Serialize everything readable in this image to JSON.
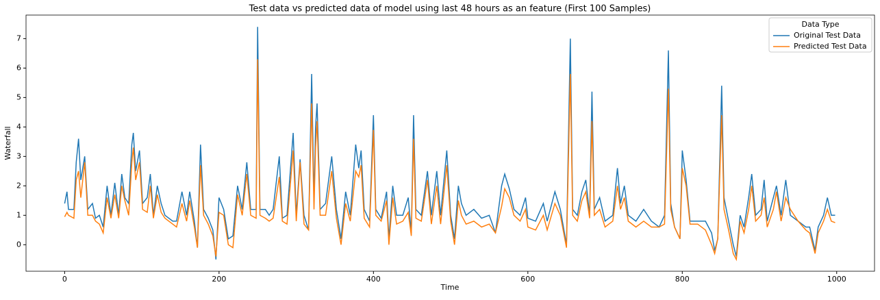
{
  "chart_data": {
    "type": "line",
    "title": "Test data vs predicted data of model using last 48 hours as an feature (First 100 Samples)",
    "x_label": "Time",
    "y_label": "Waterfall",
    "legend_title": "Data Type",
    "legend": "upper right",
    "x": [
      0,
      3,
      5,
      12,
      15,
      18,
      21,
      26,
      30,
      36,
      40,
      45,
      50,
      55,
      60,
      65,
      70,
      74,
      78,
      83,
      87,
      89,
      92,
      97,
      101,
      107,
      111,
      115,
      120,
      125,
      130,
      140,
      145,
      152,
      158,
      162,
      168,
      172,
      176,
      180,
      186,
      192,
      196,
      200,
      206,
      212,
      218,
      224,
      230,
      236,
      241,
      248,
      250,
      253,
      260,
      265,
      270,
      278,
      282,
      288,
      296,
      300,
      305,
      310,
      316,
      320,
      323,
      325,
      327,
      331,
      338,
      346,
      352,
      358,
      364,
      370,
      377,
      381,
      384,
      388,
      395,
      400,
      403,
      410,
      417,
      420,
      425,
      430,
      438,
      445,
      449,
      452,
      455,
      462,
      470,
      475,
      482,
      487,
      495,
      500,
      505,
      510,
      514,
      520,
      530,
      540,
      550,
      558,
      566,
      570,
      576,
      582,
      590,
      597,
      600,
      610,
      620,
      625,
      635,
      642,
      650,
      655,
      658,
      664,
      670,
      675,
      680,
      683,
      686,
      693,
      700,
      710,
      716,
      720,
      725,
      730,
      740,
      750,
      760,
      770,
      777,
      782,
      785,
      790,
      797,
      800,
      805,
      810,
      820,
      830,
      838,
      842,
      846,
      851,
      854,
      860,
      866,
      870,
      875,
      880,
      886,
      890,
      895,
      902,
      906,
      910,
      918,
      922,
      928,
      934,
      940,
      950,
      960,
      965,
      972,
      976,
      983,
      988,
      993,
      998
    ],
    "series": [
      {
        "name": "Original Test Data",
        "color": "#1f77b4",
        "values": [
          1.4,
          1.8,
          1.2,
          1.2,
          2.8,
          3.6,
          2.2,
          3.0,
          1.2,
          1.4,
          0.9,
          1.0,
          0.6,
          2.0,
          1.0,
          2.1,
          1.0,
          2.4,
          1.6,
          1.4,
          3.4,
          3.8,
          2.5,
          3.2,
          1.4,
          1.6,
          2.4,
          1.0,
          2.0,
          1.4,
          1.0,
          0.8,
          0.8,
          1.8,
          1.0,
          1.8,
          0.8,
          -0.1,
          3.4,
          1.2,
          0.9,
          0.5,
          -0.5,
          1.6,
          1.2,
          0.2,
          0.3,
          2.0,
          1.2,
          2.8,
          1.2,
          1.2,
          7.4,
          1.2,
          1.2,
          1.0,
          1.2,
          3.0,
          0.9,
          1.0,
          3.8,
          1.0,
          2.9,
          1.0,
          0.5,
          5.8,
          1.5,
          4.0,
          4.8,
          1.2,
          1.4,
          3.0,
          1.2,
          0.2,
          1.8,
          1.0,
          3.4,
          2.6,
          3.2,
          1.2,
          0.8,
          4.4,
          1.2,
          0.9,
          1.8,
          0.2,
          2.0,
          1.0,
          1.0,
          1.6,
          0.4,
          4.4,
          1.2,
          1.0,
          2.5,
          1.0,
          2.5,
          1.0,
          3.2,
          1.0,
          0.2,
          2.0,
          1.4,
          1.0,
          1.2,
          0.9,
          1.0,
          0.4,
          2.0,
          2.4,
          1.9,
          1.2,
          1.0,
          1.6,
          0.9,
          0.8,
          1.4,
          0.8,
          1.8,
          1.2,
          0.0,
          7.0,
          1.2,
          1.0,
          1.8,
          2.2,
          1.0,
          5.2,
          1.2,
          1.6,
          0.8,
          1.0,
          2.6,
          1.4,
          2.0,
          1.0,
          0.8,
          1.2,
          0.8,
          0.6,
          1.0,
          6.6,
          1.4,
          0.6,
          0.2,
          3.2,
          2.2,
          0.8,
          0.8,
          0.8,
          0.4,
          -0.2,
          0.2,
          5.4,
          1.6,
          0.8,
          0.0,
          -0.4,
          1.0,
          0.6,
          1.6,
          2.4,
          1.0,
          1.2,
          2.2,
          0.8,
          1.6,
          2.0,
          1.0,
          2.2,
          1.0,
          0.8,
          0.6,
          0.6,
          -0.2,
          0.6,
          1.0,
          1.6,
          1.0,
          1.0
        ]
      },
      {
        "name": "Predicted Test Data",
        "color": "#ff7f0e",
        "values": [
          0.95,
          1.1,
          1.0,
          0.9,
          2.2,
          2.5,
          1.6,
          2.8,
          1.0,
          1.0,
          0.8,
          0.7,
          0.4,
          1.6,
          0.9,
          1.7,
          0.9,
          2.0,
          1.5,
          1.0,
          2.8,
          3.3,
          2.2,
          2.8,
          1.2,
          1.1,
          2.0,
          0.9,
          1.7,
          1.1,
          0.9,
          0.7,
          0.6,
          1.4,
          0.8,
          1.5,
          0.6,
          -0.1,
          2.7,
          1.0,
          0.7,
          0.3,
          -0.4,
          1.1,
          1.0,
          0.0,
          -0.1,
          1.7,
          1.0,
          2.4,
          1.0,
          0.9,
          6.3,
          1.0,
          0.9,
          0.8,
          0.9,
          2.3,
          0.8,
          0.7,
          3.2,
          0.8,
          2.8,
          0.7,
          0.5,
          4.8,
          1.2,
          3.3,
          4.2,
          1.0,
          1.0,
          2.5,
          0.9,
          0.0,
          1.4,
          0.8,
          2.5,
          2.3,
          2.7,
          0.9,
          0.6,
          3.9,
          1.0,
          0.8,
          1.5,
          0.0,
          1.6,
          0.7,
          0.8,
          1.1,
          0.3,
          3.6,
          0.9,
          0.8,
          2.2,
          0.7,
          2.0,
          0.7,
          2.7,
          0.8,
          0.0,
          1.5,
          1.0,
          0.7,
          0.8,
          0.6,
          0.7,
          0.4,
          1.3,
          1.9,
          1.6,
          1.0,
          0.8,
          1.2,
          0.6,
          0.5,
          1.0,
          0.5,
          1.4,
          1.0,
          -0.1,
          5.8,
          1.0,
          0.8,
          1.5,
          1.8,
          0.9,
          4.2,
          1.0,
          1.2,
          0.6,
          0.8,
          2.0,
          1.2,
          1.6,
          0.8,
          0.6,
          0.8,
          0.6,
          0.6,
          0.7,
          5.3,
          1.2,
          0.6,
          0.2,
          2.6,
          2.0,
          0.7,
          0.7,
          0.5,
          0.0,
          -0.3,
          0.2,
          4.4,
          1.2,
          0.5,
          -0.3,
          -0.5,
          0.8,
          0.4,
          1.2,
          2.0,
          0.8,
          1.0,
          1.6,
          0.6,
          1.2,
          1.8,
          0.8,
          1.6,
          1.2,
          0.8,
          0.5,
          0.4,
          -0.3,
          0.4,
          0.8,
          1.2,
          0.8,
          0.75
        ]
      }
    ],
    "xlim": [
      -50,
      1049
    ],
    "xticks": [
      0,
      200,
      400,
      600,
      800,
      1000
    ],
    "ylim": [
      -0.9,
      7.8
    ],
    "yticks": [
      0,
      1,
      2,
      3,
      4,
      5,
      6,
      7
    ]
  }
}
